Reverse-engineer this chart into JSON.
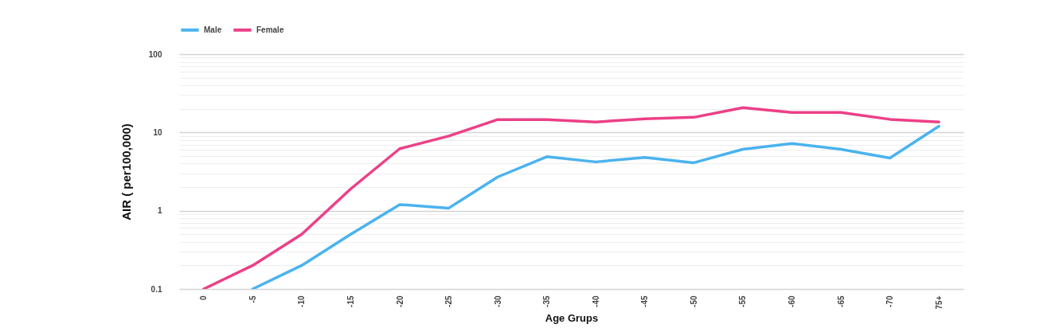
{
  "chart_data": {
    "type": "line",
    "xlabel": "Age Grups",
    "ylabel": "AIR ( per100,000)",
    "categories": [
      "0",
      "-5",
      "-10",
      "-15",
      "-20",
      "-25",
      "-30",
      "-35",
      "-40",
      "-45",
      "-50",
      "-55",
      "-60",
      "-65",
      "-70",
      "75+"
    ],
    "series": [
      {
        "name": "Male",
        "color": "#4bb3ee",
        "values": [
          null,
          0.1,
          0.2,
          0.5,
          1.2,
          1.08,
          2.7,
          4.9,
          4.2,
          4.8,
          4.1,
          6.1,
          7.2,
          6.1,
          4.7,
          12
        ]
      },
      {
        "name": "Female",
        "color": "#ec4088",
        "values": [
          0.1,
          0.2,
          0.5,
          1.9,
          6.2,
          9,
          14.6,
          14.6,
          13.6,
          14.9,
          15.6,
          20.7,
          18,
          18,
          14.7,
          13.6
        ]
      }
    ],
    "log": "y",
    "ylim": [
      0.1,
      100
    ],
    "yticks": [
      0.1,
      {
        "value": 0.2,
        "label": null
      },
      {
        "value": 0.3,
        "label": null
      },
      {
        "value": 0.4,
        "label": null
      },
      {
        "value": 0.5,
        "label": null
      },
      {
        "value": 0.6,
        "label": null
      },
      {
        "value": 0.7,
        "label": null
      },
      {
        "value": 0.8,
        "label": null
      },
      {
        "value": 0.9,
        "label": null
      },
      1,
      {
        "value": 2,
        "label": null
      },
      {
        "value": 3,
        "label": null
      },
      {
        "value": 4,
        "label": null
      },
      {
        "value": 5,
        "label": null
      },
      {
        "value": 6,
        "label": null
      },
      {
        "value": 7,
        "label": null
      },
      {
        "value": 8,
        "label": null
      },
      {
        "value": 9,
        "label": null
      },
      10,
      {
        "value": 20,
        "label": null
      },
      {
        "value": 30,
        "label": null
      },
      {
        "value": 40,
        "label": null
      },
      {
        "value": 50,
        "label": null
      },
      {
        "value": 60,
        "label": null
      },
      {
        "value": 70,
        "label": null
      },
      {
        "value": 80,
        "label": null
      },
      {
        "value": 90,
        "label": null
      },
      100
    ],
    "grid": "y",
    "legend": "top",
    "marker": "none",
    "line_style": "solid"
  }
}
